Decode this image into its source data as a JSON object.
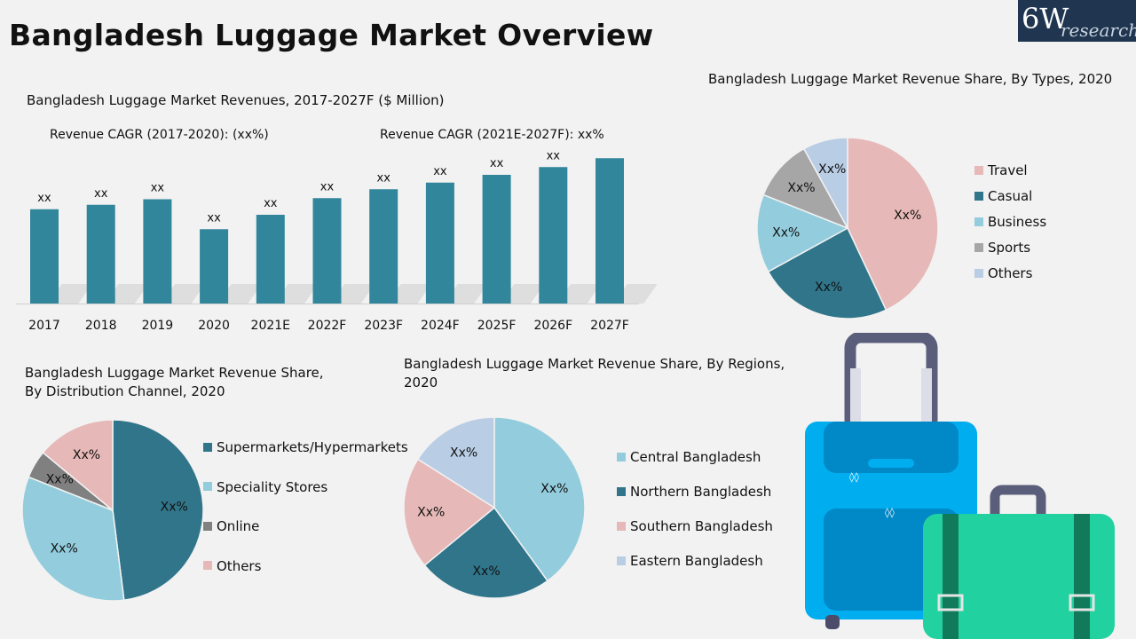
{
  "page": {
    "title": "Bangladesh Luggage Market Overview",
    "logo": {
      "main": "6W",
      "sub": "research"
    }
  },
  "colors": {
    "bar": "#31869b",
    "pink": "#e6b8b7",
    "teal": "#31758a",
    "lightblue": "#93cddd",
    "gray": "#a6a6a6",
    "paleblue": "#b9cde5"
  },
  "chart_data": [
    {
      "type": "bar",
      "title": "Bangladesh Luggage Market Revenues, 2017-2027F ($ Million)",
      "annotations": [
        "Revenue CAGR (2017-2020): (xx%)",
        "Revenue CAGR (2021E-2027F): xx%"
      ],
      "categories": [
        "2017",
        "2018",
        "2019",
        "2020",
        "2021E",
        "2022F",
        "2023F",
        "2024F",
        "2025F",
        "2026F",
        "2027F"
      ],
      "values": [
        85,
        89,
        94,
        67,
        80,
        95,
        103,
        109,
        116,
        123,
        131
      ],
      "data_labels": [
        "xx",
        "xx",
        "xx",
        "xx",
        "xx",
        "xx",
        "xx",
        "xx",
        "xx",
        "xx",
        "xx"
      ],
      "ylim": [
        0,
        160
      ],
      "grid": false
    },
    {
      "type": "pie",
      "title": "Bangladesh Luggage Market Revenue Share, By Types, 2020",
      "labels": [
        "Travel",
        "Casual",
        "Business",
        "Sports",
        "Others"
      ],
      "values": [
        43,
        24,
        14,
        11,
        8
      ],
      "data_labels": [
        "Xx%",
        "Xx%",
        "Xx%",
        "Xx%",
        "Xx%"
      ],
      "colors": [
        "#e6b8b7",
        "#31758a",
        "#93cddd",
        "#a6a6a6",
        "#b9cde5"
      ],
      "legend": "right"
    },
    {
      "type": "pie",
      "title": "Bangladesh Luggage Market Revenue Share, By Distribution Channel, 2020",
      "labels": [
        "Supermarkets/Hypermarkets",
        "Speciality Stores",
        "Online",
        "Others"
      ],
      "values": [
        48,
        33,
        5,
        14
      ],
      "data_labels": [
        "Xx%",
        "Xx%",
        "Xx%",
        "Xx%"
      ],
      "colors": [
        "#31758a",
        "#93cddd",
        "#808080",
        "#e6b8b7"
      ],
      "legend": "right"
    },
    {
      "type": "pie",
      "title": "Bangladesh Luggage Market Revenue Share, By Regions, 2020",
      "labels": [
        "Central Bangladesh",
        "Northern Bangladesh",
        "Southern Bangladesh",
        "Eastern Bangladesh"
      ],
      "values": [
        40,
        24,
        20,
        16
      ],
      "data_labels": [
        "Xx%",
        "Xx%",
        "Xx%",
        "Xx%"
      ],
      "colors": [
        "#93cddd",
        "#31758a",
        "#e6b8b7",
        "#b9cde5"
      ],
      "legend": "right"
    }
  ]
}
